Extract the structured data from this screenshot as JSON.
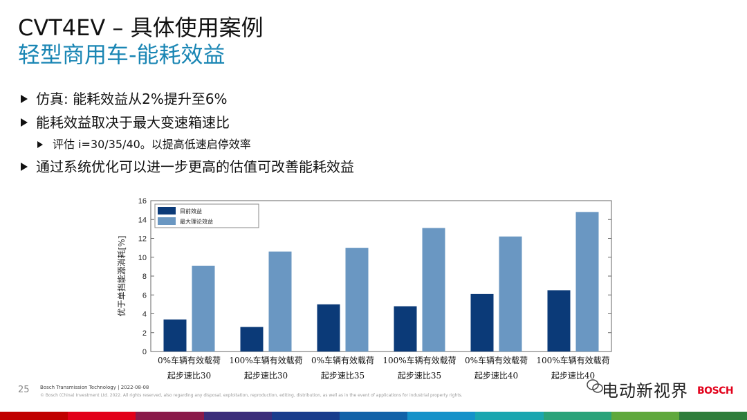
{
  "slide": {
    "title": "CVT4EV – 具体使用案例",
    "subtitle": "轻型商用车-能耗效益",
    "bullets": [
      "仿真: 能耗效益从2%提升至6%",
      "能耗效益取决于最大变速箱速比",
      "评估 i=30/35/40。以提高低速启停效率",
      "通过系统优化可以进一步更高的估值可改善能耗效益"
    ]
  },
  "chart_data": {
    "type": "bar",
    "ylabel": "优于单挡能源消耗[%]",
    "ylim": [
      0,
      16
    ],
    "yticks": [
      "0",
      "2",
      "4",
      "6",
      "8",
      "10",
      "12",
      "14",
      "16"
    ],
    "categories": [
      [
        "0%车辆有效载荷",
        "起步速比30"
      ],
      [
        "100%车辆有效载荷",
        "起步速比30"
      ],
      [
        "0%车辆有效载荷",
        "起步速比35"
      ],
      [
        "100%车辆有效载荷",
        "起步速比35"
      ],
      [
        "0%车辆有效载荷",
        "起步速比40"
      ],
      [
        "100%车辆有效载荷",
        "起步速比40"
      ]
    ],
    "series": [
      {
        "name": "目前效益",
        "color": "#0b3a78",
        "values": [
          3.4,
          2.6,
          5.0,
          4.8,
          6.1,
          6.5
        ]
      },
      {
        "name": "最大理论效益",
        "color": "#6a97c2",
        "values": [
          9.1,
          10.6,
          11.0,
          13.1,
          12.2,
          14.8
        ]
      }
    ],
    "grid": false,
    "legend": "top-left"
  },
  "footer": {
    "page_number": "25",
    "company_line": "Bosch Transmission Technology | 2022-08-08",
    "copyright": "© Bosch (China) Investment Ltd. 2022. All rights reserved, also regarding any disposal, exploitation, reproduction, editing, distribution, as well as in the event of applications for industrial property rights.",
    "watermark": "电动新视界",
    "brand": "BOSCH"
  },
  "colors": {
    "accent": "#1a86b4",
    "brand_red": "#e2001a",
    "strip": [
      "#c00000",
      "#e2001a",
      "#8a1a4a",
      "#3b2d7a",
      "#183c8c",
      "#1262a8",
      "#1592c9",
      "#1aa6b0",
      "#2aa37a",
      "#5fa83c",
      "#2e7d3b"
    ]
  }
}
